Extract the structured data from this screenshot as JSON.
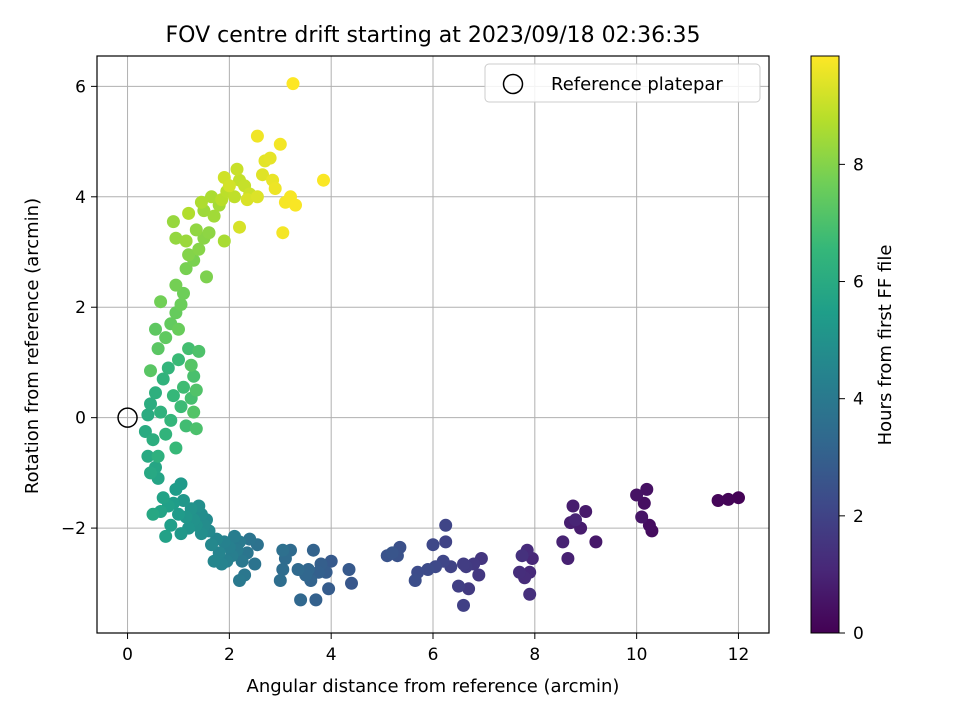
{
  "chart_data": {
    "type": "scatter",
    "title": "FOV centre drift starting at 2023/09/18 02:36:35",
    "xlabel": "Angular distance from reference (arcmin)",
    "ylabel": "Rotation from reference (arcmin)",
    "xlim": [
      -0.6,
      12.6
    ],
    "ylim": [
      -3.9,
      6.55
    ],
    "xticks": [
      0,
      2,
      4,
      6,
      8,
      10,
      12
    ],
    "yticks": [
      -2,
      0,
      2,
      4,
      6
    ],
    "grid": true,
    "legend": {
      "position": "top-right",
      "entries": [
        "Reference platepar"
      ]
    },
    "reference_point": {
      "x": 0,
      "y": 0,
      "marker": "open-circle"
    },
    "colorbar": {
      "label": "Hours from first FF file",
      "colormap": "viridis",
      "range": [
        0,
        9.85
      ],
      "ticks": [
        0,
        2,
        4,
        6,
        8
      ]
    },
    "colormap_stops": [
      "#440154",
      "#482878",
      "#3e4989",
      "#31688e",
      "#26828e",
      "#1f9e89",
      "#35b779",
      "#6ece58",
      "#b5de2b",
      "#fde725"
    ],
    "points": [
      [
        12.0,
        -1.45,
        0.05
      ],
      [
        11.8,
        -1.48,
        0.1
      ],
      [
        11.6,
        -1.5,
        0.15
      ],
      [
        10.3,
        -2.05,
        0.3
      ],
      [
        10.25,
        -1.95,
        0.35
      ],
      [
        10.15,
        -1.55,
        0.4
      ],
      [
        10.2,
        -1.3,
        0.45
      ],
      [
        10.0,
        -1.4,
        0.5
      ],
      [
        10.1,
        -1.8,
        0.55
      ],
      [
        9.2,
        -2.25,
        0.65
      ],
      [
        9.0,
        -1.7,
        0.7
      ],
      [
        8.9,
        -2.0,
        0.75
      ],
      [
        8.75,
        -1.6,
        0.8
      ],
      [
        8.7,
        -1.9,
        0.85
      ],
      [
        8.65,
        -2.55,
        0.9
      ],
      [
        8.55,
        -2.25,
        0.95
      ],
      [
        8.8,
        -1.85,
        1.0
      ],
      [
        7.95,
        -2.55,
        1.1
      ],
      [
        7.9,
        -2.8,
        1.15
      ],
      [
        7.85,
        -2.4,
        1.2
      ],
      [
        7.8,
        -2.9,
        1.25
      ],
      [
        7.7,
        -2.8,
        1.3
      ],
      [
        7.9,
        -3.2,
        1.35
      ],
      [
        7.75,
        -2.5,
        1.4
      ],
      [
        6.95,
        -2.55,
        1.55
      ],
      [
        6.9,
        -2.85,
        1.6
      ],
      [
        6.8,
        -2.65,
        1.65
      ],
      [
        6.7,
        -3.1,
        1.7
      ],
      [
        6.65,
        -2.7,
        1.75
      ],
      [
        6.6,
        -2.65,
        1.8
      ],
      [
        6.5,
        -3.05,
        1.85
      ],
      [
        6.6,
        -3.4,
        1.9
      ],
      [
        6.35,
        -2.7,
        1.95
      ],
      [
        6.25,
        -2.25,
        2.0
      ],
      [
        6.25,
        -1.95,
        2.05
      ],
      [
        6.2,
        -2.6,
        2.1
      ],
      [
        6.0,
        -2.3,
        2.15
      ],
      [
        6.05,
        -2.7,
        2.2
      ],
      [
        5.9,
        -2.75,
        2.25
      ],
      [
        5.7,
        -2.8,
        2.3
      ],
      [
        5.65,
        -2.95,
        2.35
      ],
      [
        5.35,
        -2.35,
        2.45
      ],
      [
        5.3,
        -2.5,
        2.5
      ],
      [
        5.1,
        -2.5,
        2.55
      ],
      [
        5.2,
        -2.45,
        2.6
      ],
      [
        4.4,
        -3.0,
        2.7
      ],
      [
        4.35,
        -2.75,
        2.75
      ],
      [
        4.0,
        -2.6,
        2.8
      ],
      [
        3.95,
        -3.1,
        2.85
      ],
      [
        3.9,
        -2.8,
        2.9
      ],
      [
        3.8,
        -2.65,
        2.95
      ],
      [
        3.75,
        -2.8,
        3.0
      ],
      [
        3.7,
        -3.3,
        3.05
      ],
      [
        3.65,
        -2.4,
        3.1
      ],
      [
        3.6,
        -2.95,
        3.15
      ],
      [
        3.55,
        -2.75,
        3.2
      ],
      [
        3.5,
        -2.85,
        3.25
      ],
      [
        3.4,
        -3.3,
        3.3
      ],
      [
        3.35,
        -2.75,
        3.35
      ],
      [
        3.2,
        -2.4,
        3.4
      ],
      [
        3.1,
        -2.55,
        3.45
      ],
      [
        3.05,
        -2.75,
        3.5
      ],
      [
        3.0,
        -2.95,
        3.55
      ],
      [
        3.05,
        -2.4,
        3.6
      ],
      [
        2.55,
        -2.3,
        3.7
      ],
      [
        2.5,
        -2.65,
        3.75
      ],
      [
        2.4,
        -2.2,
        3.8
      ],
      [
        2.35,
        -2.45,
        3.85
      ],
      [
        2.3,
        -2.85,
        3.9
      ],
      [
        2.25,
        -2.6,
        3.95
      ],
      [
        2.2,
        -2.95,
        4.0
      ],
      [
        2.2,
        -2.25,
        4.05
      ],
      [
        2.15,
        -2.4,
        4.1
      ],
      [
        2.1,
        -2.15,
        4.15
      ],
      [
        2.05,
        -2.5,
        4.2
      ],
      [
        2.0,
        -2.35,
        4.25
      ],
      [
        1.95,
        -2.6,
        4.3
      ],
      [
        1.9,
        -2.25,
        4.35
      ],
      [
        1.85,
        -2.65,
        4.4
      ],
      [
        1.8,
        -2.45,
        4.45
      ],
      [
        1.75,
        -2.2,
        4.5
      ],
      [
        1.7,
        -2.6,
        4.55
      ],
      [
        1.65,
        -2.3,
        4.6
      ],
      [
        1.6,
        -2.05,
        4.65
      ],
      [
        1.55,
        -1.85,
        4.7
      ],
      [
        1.5,
        -1.95,
        4.75
      ],
      [
        1.45,
        -1.75,
        4.8
      ],
      [
        1.45,
        -2.1,
        4.85
      ],
      [
        1.4,
        -1.6,
        4.9
      ],
      [
        1.35,
        -1.95,
        4.95
      ],
      [
        1.3,
        -1.85,
        5.0
      ],
      [
        1.25,
        -1.65,
        5.05
      ],
      [
        1.2,
        -2.0,
        5.1
      ],
      [
        1.15,
        -1.8,
        5.15
      ],
      [
        1.1,
        -1.5,
        5.2
      ],
      [
        1.05,
        -2.1,
        5.25
      ],
      [
        1.05,
        -1.2,
        5.3
      ],
      [
        1.0,
        -1.75,
        5.35
      ],
      [
        0.95,
        -1.3,
        5.4
      ],
      [
        0.9,
        -1.55,
        5.45
      ],
      [
        0.85,
        -1.95,
        5.5
      ],
      [
        0.8,
        -1.6,
        5.55
      ],
      [
        0.75,
        -2.15,
        5.6
      ],
      [
        0.7,
        -1.45,
        5.65
      ],
      [
        0.65,
        -1.7,
        5.7
      ],
      [
        0.6,
        -1.1,
        5.75
      ],
      [
        0.55,
        -0.9,
        5.8
      ],
      [
        0.5,
        -1.75,
        5.85
      ],
      [
        0.45,
        -1.0,
        5.9
      ],
      [
        0.4,
        -0.7,
        5.95
      ],
      [
        0.35,
        -0.25,
        6.0
      ],
      [
        0.4,
        0.05,
        6.05
      ],
      [
        0.45,
        0.25,
        6.1
      ],
      [
        0.5,
        -0.4,
        6.15
      ],
      [
        0.55,
        0.45,
        6.2
      ],
      [
        0.6,
        -0.7,
        6.25
      ],
      [
        0.65,
        0.1,
        6.3
      ],
      [
        0.7,
        0.7,
        6.35
      ],
      [
        0.75,
        -0.3,
        6.4
      ],
      [
        0.8,
        0.9,
        6.45
      ],
      [
        0.85,
        -0.05,
        6.5
      ],
      [
        0.9,
        0.4,
        6.55
      ],
      [
        0.95,
        -0.55,
        6.6
      ],
      [
        1.0,
        1.05,
        6.65
      ],
      [
        1.05,
        0.2,
        6.7
      ],
      [
        1.1,
        0.55,
        6.75
      ],
      [
        1.15,
        -0.15,
        6.8
      ],
      [
        1.2,
        1.25,
        6.85
      ],
      [
        1.25,
        0.35,
        6.9
      ],
      [
        1.3,
        0.75,
        6.95
      ],
      [
        1.35,
        -0.2,
        7.0
      ],
      [
        1.4,
        1.2,
        7.05
      ],
      [
        1.35,
        0.5,
        7.1
      ],
      [
        1.3,
        0.1,
        7.15
      ],
      [
        1.25,
        0.95,
        7.2
      ],
      [
        0.45,
        0.85,
        7.25
      ],
      [
        0.6,
        1.25,
        7.3
      ],
      [
        0.55,
        1.6,
        7.35
      ],
      [
        0.75,
        1.45,
        7.4
      ],
      [
        0.85,
        1.7,
        7.45
      ],
      [
        0.95,
        1.9,
        7.5
      ],
      [
        1.0,
        1.6,
        7.55
      ],
      [
        1.05,
        2.05,
        7.6
      ],
      [
        1.1,
        2.25,
        7.65
      ],
      [
        0.65,
        2.1,
        7.7
      ],
      [
        0.95,
        2.4,
        7.75
      ],
      [
        1.15,
        2.7,
        7.8
      ],
      [
        1.3,
        2.85,
        7.85
      ],
      [
        1.55,
        2.55,
        7.9
      ],
      [
        1.2,
        2.95,
        8.0
      ],
      [
        1.4,
        3.05,
        8.05
      ],
      [
        1.5,
        3.25,
        8.1
      ],
      [
        1.6,
        3.35,
        8.15
      ],
      [
        1.35,
        3.4,
        8.2
      ],
      [
        0.95,
        3.25,
        8.25
      ],
      [
        0.9,
        3.55,
        8.3
      ],
      [
        1.15,
        3.2,
        8.35
      ],
      [
        1.5,
        3.75,
        8.4
      ],
      [
        1.7,
        3.65,
        8.45
      ],
      [
        1.8,
        3.85,
        8.5
      ],
      [
        1.9,
        3.2,
        8.55
      ],
      [
        1.65,
        4.0,
        8.6
      ],
      [
        1.45,
        3.9,
        8.65
      ],
      [
        1.2,
        3.7,
        8.7
      ],
      [
        1.85,
        3.95,
        8.8
      ],
      [
        1.95,
        4.1,
        8.85
      ],
      [
        2.1,
        4.0,
        8.9
      ],
      [
        2.2,
        4.3,
        8.95
      ],
      [
        2.3,
        4.2,
        9.0
      ],
      [
        2.15,
        4.5,
        9.05
      ],
      [
        2.4,
        4.05,
        9.1
      ],
      [
        1.9,
        4.35,
        9.15
      ],
      [
        2.0,
        4.2,
        9.2
      ],
      [
        2.2,
        3.45,
        9.25
      ],
      [
        2.35,
        3.95,
        9.3
      ],
      [
        2.55,
        4.0,
        9.35
      ],
      [
        2.65,
        4.4,
        9.4
      ],
      [
        2.7,
        4.65,
        9.45
      ],
      [
        2.8,
        4.7,
        9.5
      ],
      [
        2.85,
        4.3,
        9.55
      ],
      [
        2.9,
        4.15,
        9.6
      ],
      [
        2.55,
        5.1,
        9.65
      ],
      [
        3.0,
        4.95,
        9.7
      ],
      [
        3.05,
        3.35,
        9.72
      ],
      [
        3.1,
        3.9,
        9.74
      ],
      [
        3.2,
        4.0,
        9.76
      ],
      [
        3.3,
        3.85,
        9.78
      ],
      [
        3.85,
        4.3,
        9.8
      ],
      [
        3.25,
        6.05,
        9.85
      ]
    ]
  }
}
